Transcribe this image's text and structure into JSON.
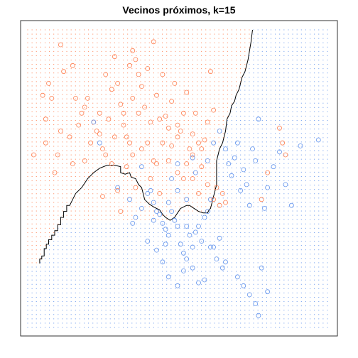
{
  "chart_data": {
    "type": "scatter",
    "title": "Vecinos próximos, k=15",
    "xlabel": "",
    "ylabel": "",
    "grid": false,
    "xlim": [
      0,
      1
    ],
    "ylim": [
      0,
      1
    ],
    "colors": {
      "orange": "#ff7f50",
      "blue": "#6495ed",
      "boundary": "#000000"
    },
    "boundary": [
      [
        0.04,
        0.215
      ],
      [
        0.04,
        0.23
      ],
      [
        0.047,
        0.23
      ],
      [
        0.047,
        0.24
      ],
      [
        0.055,
        0.24
      ],
      [
        0.055,
        0.265
      ],
      [
        0.062,
        0.265
      ],
      [
        0.062,
        0.28
      ],
      [
        0.07,
        0.28
      ],
      [
        0.07,
        0.295
      ],
      [
        0.08,
        0.295
      ],
      [
        0.08,
        0.31
      ],
      [
        0.09,
        0.31
      ],
      [
        0.09,
        0.325
      ],
      [
        0.1,
        0.325
      ],
      [
        0.1,
        0.345
      ],
      [
        0.11,
        0.345
      ],
      [
        0.11,
        0.37
      ],
      [
        0.12,
        0.37
      ],
      [
        0.12,
        0.39
      ],
      [
        0.13,
        0.39
      ],
      [
        0.13,
        0.41
      ],
      [
        0.14,
        0.41
      ],
      [
        0.15,
        0.43
      ],
      [
        0.16,
        0.45
      ],
      [
        0.18,
        0.47
      ],
      [
        0.2,
        0.5
      ],
      [
        0.22,
        0.52
      ],
      [
        0.24,
        0.535
      ],
      [
        0.265,
        0.545
      ],
      [
        0.29,
        0.545
      ],
      [
        0.31,
        0.54
      ],
      [
        0.31,
        0.52
      ],
      [
        0.325,
        0.515
      ],
      [
        0.34,
        0.52
      ],
      [
        0.345,
        0.505
      ],
      [
        0.36,
        0.5
      ],
      [
        0.37,
        0.48
      ],
      [
        0.38,
        0.47
      ],
      [
        0.385,
        0.45
      ],
      [
        0.39,
        0.43
      ],
      [
        0.405,
        0.415
      ],
      [
        0.42,
        0.405
      ],
      [
        0.44,
        0.395
      ],
      [
        0.45,
        0.38
      ],
      [
        0.46,
        0.37
      ],
      [
        0.475,
        0.36
      ],
      [
        0.49,
        0.37
      ],
      [
        0.5,
        0.385
      ],
      [
        0.51,
        0.4
      ],
      [
        0.52,
        0.405
      ],
      [
        0.53,
        0.41
      ],
      [
        0.54,
        0.41
      ],
      [
        0.555,
        0.4
      ],
      [
        0.57,
        0.39
      ],
      [
        0.585,
        0.385
      ],
      [
        0.6,
        0.385
      ],
      [
        0.605,
        0.395
      ],
      [
        0.61,
        0.4
      ],
      [
        0.615,
        0.42
      ],
      [
        0.62,
        0.44
      ],
      [
        0.625,
        0.46
      ],
      [
        0.63,
        0.48
      ],
      [
        0.63,
        0.53
      ],
      [
        0.63,
        0.56
      ],
      [
        0.64,
        0.6
      ],
      [
        0.65,
        0.62
      ],
      [
        0.66,
        0.66
      ],
      [
        0.665,
        0.7
      ],
      [
        0.675,
        0.72
      ],
      [
        0.68,
        0.745
      ],
      [
        0.69,
        0.76
      ],
      [
        0.695,
        0.78
      ],
      [
        0.705,
        0.8
      ],
      [
        0.71,
        0.82
      ],
      [
        0.715,
        0.84
      ],
      [
        0.725,
        0.86
      ],
      [
        0.73,
        0.88
      ],
      [
        0.735,
        0.9
      ],
      [
        0.74,
        0.93
      ],
      [
        0.745,
        0.96
      ],
      [
        0.75,
        1.0
      ]
    ],
    "series": [
      {
        "color": "orange",
        "points": [
          [
            0.02,
            0.58
          ],
          [
            0.05,
            0.78
          ],
          [
            0.06,
            0.62
          ],
          [
            0.07,
            0.82
          ],
          [
            0.08,
            0.77
          ],
          [
            0.09,
            0.52
          ],
          [
            0.1,
            0.58
          ],
          [
            0.11,
            0.95
          ],
          [
            0.12,
            0.86
          ],
          [
            0.14,
            0.64
          ],
          [
            0.15,
            0.88
          ],
          [
            0.16,
            0.77
          ],
          [
            0.17,
            0.68
          ],
          [
            0.18,
            0.72
          ],
          [
            0.19,
            0.74
          ],
          [
            0.2,
            0.77
          ],
          [
            0.21,
            0.62
          ],
          [
            0.22,
            0.69
          ],
          [
            0.23,
            0.66
          ],
          [
            0.24,
            0.72
          ],
          [
            0.25,
            0.6
          ],
          [
            0.26,
            0.85
          ],
          [
            0.27,
            0.7
          ],
          [
            0.28,
            0.8
          ],
          [
            0.29,
            0.91
          ],
          [
            0.3,
            0.82
          ],
          [
            0.31,
            0.75
          ],
          [
            0.32,
            0.68
          ],
          [
            0.33,
            0.64
          ],
          [
            0.34,
            0.62
          ],
          [
            0.35,
            0.77
          ],
          [
            0.36,
            0.9
          ],
          [
            0.37,
            0.72
          ],
          [
            0.38,
            0.81
          ],
          [
            0.39,
            0.74
          ],
          [
            0.4,
            0.87
          ],
          [
            0.41,
            0.69
          ],
          [
            0.42,
            0.96
          ],
          [
            0.43,
            0.78
          ],
          [
            0.44,
            0.7
          ],
          [
            0.45,
            0.85
          ],
          [
            0.46,
            0.71
          ],
          [
            0.47,
            0.67
          ],
          [
            0.48,
            0.76
          ],
          [
            0.49,
            0.82
          ],
          [
            0.5,
            0.64
          ],
          [
            0.51,
            0.66
          ],
          [
            0.52,
            0.72
          ],
          [
            0.53,
            0.79
          ],
          [
            0.54,
            0.6
          ],
          [
            0.55,
            0.58
          ],
          [
            0.56,
            0.72
          ],
          [
            0.57,
            0.62
          ],
          [
            0.58,
            0.54
          ],
          [
            0.59,
            0.63
          ],
          [
            0.6,
            0.69
          ],
          [
            0.61,
            0.86
          ],
          [
            0.62,
            0.73
          ],
          [
            0.63,
            0.47
          ],
          [
            0.64,
            0.41
          ],
          [
            0.65,
            0.45
          ],
          [
            0.66,
            0.42
          ],
          [
            0.3,
            0.46
          ],
          [
            0.35,
            0.58
          ],
          [
            0.4,
            0.62
          ],
          [
            0.43,
            0.55
          ],
          [
            0.45,
            0.62
          ],
          [
            0.5,
            0.52
          ],
          [
            0.53,
            0.55
          ],
          [
            0.55,
            0.5
          ],
          [
            0.57,
            0.45
          ],
          [
            0.6,
            0.48
          ],
          [
            0.62,
            0.43
          ],
          [
            0.58,
            0.6
          ],
          [
            0.52,
            0.5
          ],
          [
            0.48,
            0.61
          ],
          [
            0.42,
            0.56
          ],
          [
            0.38,
            0.6
          ],
          [
            0.33,
            0.54
          ],
          [
            0.28,
            0.55
          ],
          [
            0.26,
            0.58
          ],
          [
            0.84,
            0.67
          ],
          [
            0.85,
            0.62
          ],
          [
            0.86,
            0.58
          ],
          [
            0.8,
            0.52
          ],
          [
            0.78,
            0.43
          ],
          [
            0.44,
            0.45
          ],
          [
            0.41,
            0.5
          ],
          [
            0.35,
            0.93
          ],
          [
            0.37,
            0.85
          ],
          [
            0.34,
            0.88
          ],
          [
            0.5,
            0.68
          ],
          [
            0.47,
            0.56
          ],
          [
            0.55,
            0.65
          ],
          [
            0.32,
            0.72
          ],
          [
            0.29,
            0.64
          ],
          [
            0.24,
            0.65
          ],
          [
            0.19,
            0.56
          ],
          [
            0.15,
            0.55
          ],
          [
            0.11,
            0.66
          ],
          [
            0.06,
            0.7
          ],
          [
            0.36,
            0.47
          ],
          [
            0.31,
            0.39
          ],
          [
            0.25,
            0.44
          ]
        ]
      },
      {
        "color": "blue",
        "points": [
          [
            0.22,
            0.69
          ],
          [
            0.24,
            0.62
          ],
          [
            0.3,
            0.47
          ],
          [
            0.34,
            0.43
          ],
          [
            0.36,
            0.37
          ],
          [
            0.38,
            0.54
          ],
          [
            0.4,
            0.45
          ],
          [
            0.42,
            0.42
          ],
          [
            0.43,
            0.39
          ],
          [
            0.44,
            0.38
          ],
          [
            0.45,
            0.35
          ],
          [
            0.46,
            0.33
          ],
          [
            0.47,
            0.31
          ],
          [
            0.48,
            0.39
          ],
          [
            0.49,
            0.36
          ],
          [
            0.5,
            0.34
          ],
          [
            0.51,
            0.28
          ],
          [
            0.52,
            0.25
          ],
          [
            0.53,
            0.34
          ],
          [
            0.54,
            0.31
          ],
          [
            0.55,
            0.27
          ],
          [
            0.56,
            0.32
          ],
          [
            0.57,
            0.34
          ],
          [
            0.58,
            0.29
          ],
          [
            0.59,
            0.37
          ],
          [
            0.6,
            0.39
          ],
          [
            0.61,
            0.43
          ],
          [
            0.62,
            0.27
          ],
          [
            0.63,
            0.23
          ],
          [
            0.64,
            0.3
          ],
          [
            0.65,
            0.2
          ],
          [
            0.66,
            0.22
          ],
          [
            0.67,
            0.55
          ],
          [
            0.68,
            0.51
          ],
          [
            0.69,
            0.57
          ],
          [
            0.7,
            0.62
          ],
          [
            0.71,
            0.46
          ],
          [
            0.72,
            0.53
          ],
          [
            0.73,
            0.48
          ],
          [
            0.74,
            0.41
          ],
          [
            0.75,
            0.6
          ],
          [
            0.76,
            0.56
          ],
          [
            0.77,
            0.7
          ],
          [
            0.79,
            0.4
          ],
          [
            0.8,
            0.47
          ],
          [
            0.82,
            0.54
          ],
          [
            0.84,
            0.59
          ],
          [
            0.86,
            0.48
          ],
          [
            0.88,
            0.41
          ],
          [
            0.91,
            0.61
          ],
          [
            0.97,
            0.63
          ],
          [
            0.7,
            0.17
          ],
          [
            0.72,
            0.14
          ],
          [
            0.74,
            0.11
          ],
          [
            0.76,
            0.08
          ],
          [
            0.77,
            0.04
          ],
          [
            0.78,
            0.2
          ],
          [
            0.8,
            0.12
          ],
          [
            0.35,
            0.35
          ],
          [
            0.4,
            0.29
          ],
          [
            0.43,
            0.26
          ],
          [
            0.45,
            0.22
          ],
          [
            0.47,
            0.17
          ],
          [
            0.5,
            0.14
          ],
          [
            0.53,
            0.23
          ],
          [
            0.55,
            0.2
          ],
          [
            0.57,
            0.15
          ],
          [
            0.59,
            0.16
          ],
          [
            0.61,
            0.27
          ],
          [
            0.38,
            0.4
          ],
          [
            0.41,
            0.46
          ],
          [
            0.48,
            0.5
          ],
          [
            0.5,
            0.46
          ],
          [
            0.53,
            0.43
          ],
          [
            0.56,
            0.52
          ],
          [
            0.6,
            0.56
          ],
          [
            0.62,
            0.62
          ],
          [
            0.64,
            0.66
          ],
          [
            0.66,
            0.6
          ],
          [
            0.55,
            0.57
          ],
          [
            0.5,
            0.55
          ],
          [
            0.47,
            0.42
          ],
          [
            0.42,
            0.36
          ],
          [
            0.46,
            0.28
          ],
          [
            0.52,
            0.19
          ]
        ]
      }
    ]
  }
}
